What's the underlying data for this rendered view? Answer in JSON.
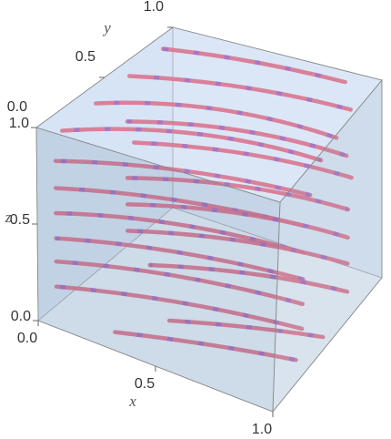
{
  "chart_data": {
    "type": "stream3d",
    "xlabel": "x",
    "ylabel": "y",
    "zlabel": "z",
    "xlim": [
      0,
      1
    ],
    "ylim": [
      0,
      1
    ],
    "zlim": [
      0,
      1
    ],
    "xticks": [
      {
        "value": 0,
        "label": "0.0"
      },
      0.5,
      {
        "value": 1,
        "label": "1.0"
      }
    ],
    "yticks": [
      {
        "value": 0,
        "label": "0.0"
      },
      0.5,
      {
        "value": 1,
        "label": "1.0"
      }
    ],
    "zticks": [
      {
        "value": 0,
        "label": "0.0"
      },
      0.5,
      {
        "value": 1,
        "label": "1.0"
      }
    ],
    "color": "#d9506e",
    "streamlines": [
      [
        [
          0.05,
          0.85,
          0.98
        ],
        [
          0.45,
          0.9,
          1.0
        ],
        [
          0.85,
          0.95,
          0.98
        ]
      ],
      [
        [
          0.05,
          0.6,
          0.97
        ],
        [
          0.5,
          0.7,
          1.0
        ],
        [
          0.95,
          0.8,
          0.96
        ]
      ],
      [
        [
          0.05,
          0.35,
          0.96
        ],
        [
          0.5,
          0.5,
          1.0
        ],
        [
          0.98,
          0.6,
          0.95
        ]
      ],
      [
        [
          0.05,
          0.1,
          0.95
        ],
        [
          0.5,
          0.3,
          0.99
        ],
        [
          0.98,
          0.45,
          0.93
        ]
      ],
      [
        [
          0.05,
          0.05,
          0.82
        ],
        [
          0.5,
          0.2,
          0.86
        ],
        [
          0.98,
          0.35,
          0.82
        ]
      ],
      [
        [
          0.1,
          0.5,
          0.8
        ],
        [
          0.55,
          0.6,
          0.85
        ],
        [
          0.98,
          0.7,
          0.8
        ]
      ],
      [
        [
          0.05,
          0.05,
          0.68
        ],
        [
          0.5,
          0.18,
          0.72
        ],
        [
          0.98,
          0.3,
          0.7
        ]
      ],
      [
        [
          0.1,
          0.55,
          0.66
        ],
        [
          0.55,
          0.65,
          0.7
        ],
        [
          0.98,
          0.75,
          0.66
        ]
      ],
      [
        [
          0.05,
          0.05,
          0.55
        ],
        [
          0.5,
          0.18,
          0.6
        ],
        [
          0.98,
          0.3,
          0.57
        ]
      ],
      [
        [
          0.1,
          0.5,
          0.5
        ],
        [
          0.55,
          0.62,
          0.55
        ],
        [
          0.98,
          0.72,
          0.52
        ]
      ],
      [
        [
          0.05,
          0.05,
          0.42
        ],
        [
          0.5,
          0.18,
          0.46
        ],
        [
          0.98,
          0.3,
          0.44
        ]
      ],
      [
        [
          0.1,
          0.5,
          0.36
        ],
        [
          0.55,
          0.62,
          0.41
        ],
        [
          0.98,
          0.72,
          0.38
        ]
      ],
      [
        [
          0.05,
          0.05,
          0.3
        ],
        [
          0.5,
          0.18,
          0.34
        ],
        [
          0.98,
          0.3,
          0.32
        ]
      ],
      [
        [
          0.1,
          0.5,
          0.22
        ],
        [
          0.55,
          0.62,
          0.27
        ],
        [
          0.98,
          0.72,
          0.25
        ]
      ],
      [
        [
          0.05,
          0.05,
          0.17
        ],
        [
          0.5,
          0.18,
          0.21
        ],
        [
          0.98,
          0.3,
          0.2
        ]
      ],
      [
        [
          0.2,
          0.5,
          0.08
        ],
        [
          0.6,
          0.62,
          0.12
        ],
        [
          0.98,
          0.72,
          0.11
        ]
      ],
      [
        [
          0.3,
          0.05,
          0.05
        ],
        [
          0.65,
          0.15,
          0.08
        ],
        [
          0.98,
          0.25,
          0.08
        ]
      ],
      [
        [
          0.4,
          0.3,
          0.0
        ],
        [
          0.7,
          0.4,
          0.03
        ],
        [
          0.98,
          0.5,
          0.03
        ]
      ]
    ]
  }
}
